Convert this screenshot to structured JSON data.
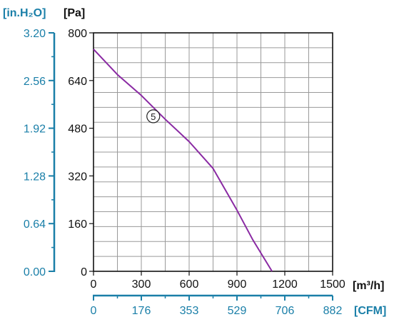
{
  "chart_data": {
    "type": "line",
    "x_unit_label": "[m³/h]",
    "x2_unit_label": "[CFM]",
    "y_unit_label": "[Pa]",
    "y2_unit_label": "[in.H₂O]",
    "xlim": [
      0,
      1500
    ],
    "ylim": [
      0,
      800
    ],
    "x_ticks": [
      "0",
      "300",
      "600",
      "900",
      "1200",
      "1500"
    ],
    "x2_ticks": [
      "0",
      "176",
      "353",
      "529",
      "706",
      "882"
    ],
    "y_ticks": [
      "0",
      "160",
      "320",
      "480",
      "640",
      "800"
    ],
    "y2_ticks": [
      "0.00",
      "0.64",
      "1.28",
      "1.92",
      "2.56",
      "3.20"
    ],
    "grid": true,
    "colors": {
      "curve": "#8a2aa3",
      "secondary_axis": "#1a7fa8",
      "grid": "#9a9a9a"
    },
    "series": [
      {
        "label": "5",
        "x": [
          0,
          150,
          300,
          450,
          600,
          750,
          900,
          1000,
          1120
        ],
        "y": [
          745,
          660,
          590,
          510,
          435,
          345,
          205,
          105,
          0
        ]
      }
    ]
  }
}
